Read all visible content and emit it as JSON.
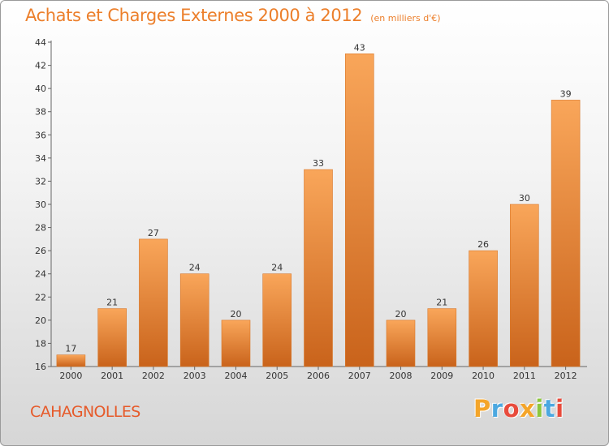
{
  "chart_data": {
    "type": "bar",
    "title": "Achats et Charges Externes 2000 à 2012",
    "subtitle": "(en milliers d'€)",
    "categories": [
      "2000",
      "2001",
      "2002",
      "2003",
      "2004",
      "2005",
      "2006",
      "2007",
      "2008",
      "2009",
      "2010",
      "2011",
      "2012"
    ],
    "values": [
      17,
      21,
      27,
      24,
      20,
      24,
      33,
      43,
      20,
      21,
      26,
      30,
      39
    ],
    "ylim": [
      16,
      44
    ],
    "yticks": [
      16,
      18,
      20,
      22,
      24,
      26,
      28,
      30,
      32,
      34,
      36,
      38,
      40,
      42,
      44
    ],
    "grid": false,
    "bar_color_top": "#f9a65a",
    "bar_color_bottom": "#c9631b"
  },
  "footer": {
    "town": "CAHAGNOLLES",
    "logo_letters": [
      "P",
      "r",
      "o",
      "x",
      "i",
      "t",
      "i"
    ],
    "logo_colors": [
      "#f4a52a",
      "#4ca8e0",
      "#e84b3c",
      "#f4a52a",
      "#8dc63f",
      "#4ca8e0",
      "#e84b3c"
    ]
  }
}
